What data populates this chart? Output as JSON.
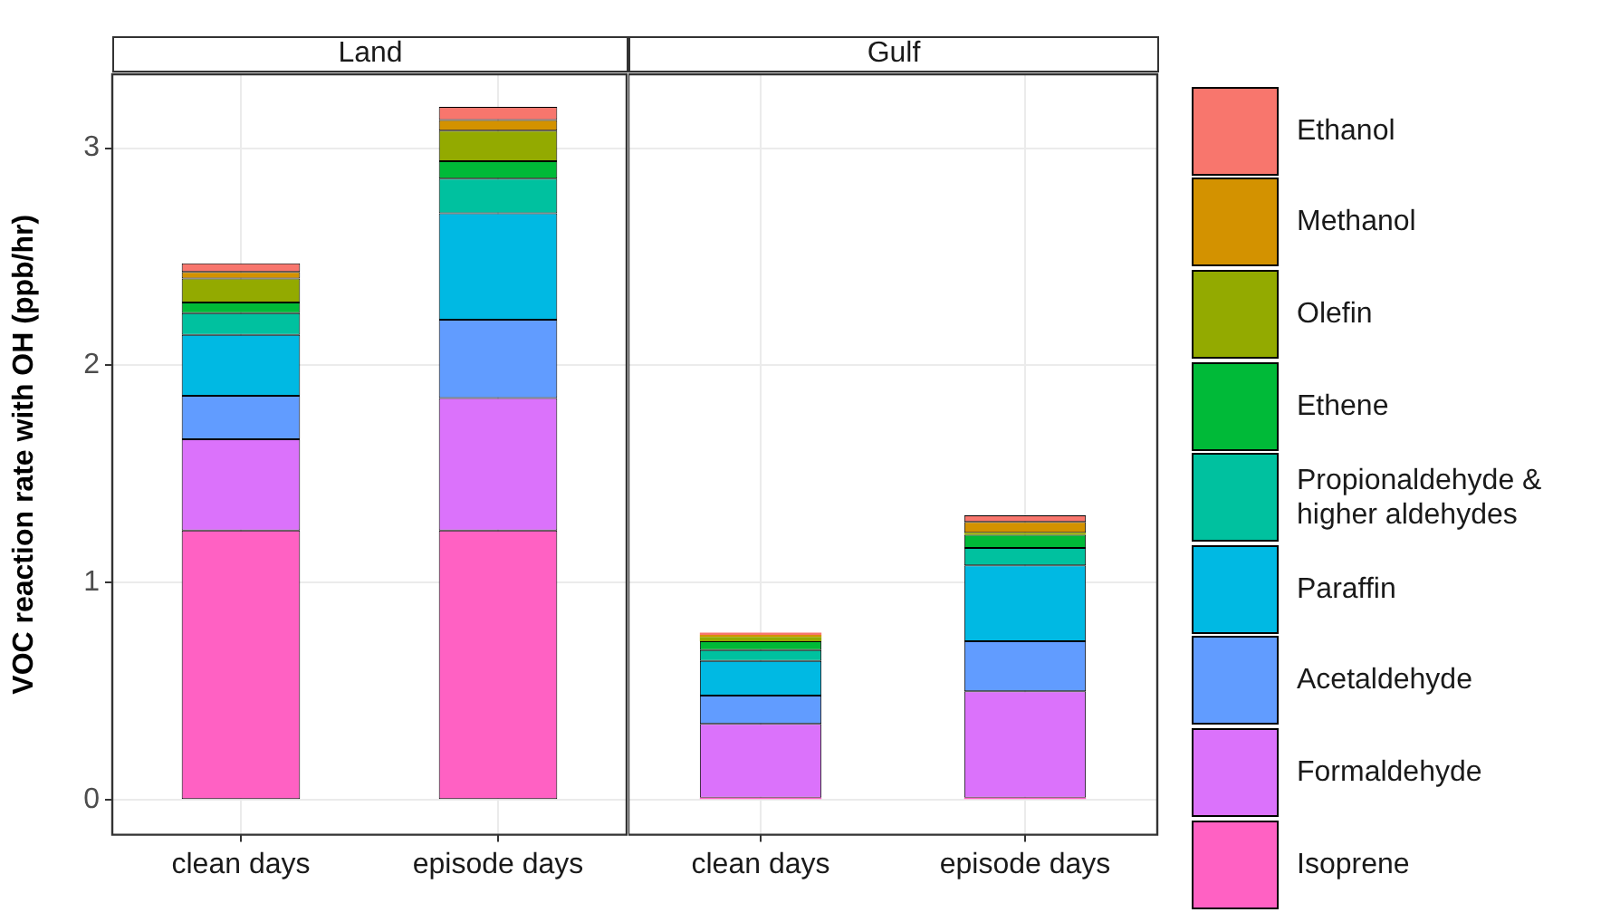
{
  "chart_data": [
    {
      "type": "bar",
      "title": "Land",
      "ylabel": "VOC reaction rate with OH (ppb/hr)",
      "categories": [
        "clean days",
        "episode days"
      ],
      "stacked": true,
      "ylim": [
        -0.16,
        3.34
      ],
      "yticks": [
        0,
        1,
        2,
        3
      ],
      "grid": true,
      "legend": false,
      "series": [
        {
          "color": "#ff61c3",
          "values": [
            1.24,
            1.24
          ]
        },
        {
          "color": "#db72fb",
          "values": [
            0.42,
            0.61
          ]
        },
        {
          "color": "#619cff",
          "values": [
            0.2,
            0.36
          ]
        },
        {
          "color": "#00b9e3",
          "values": [
            0.28,
            0.49
          ]
        },
        {
          "color": "#00c19f",
          "values": [
            0.1,
            0.16
          ]
        },
        {
          "color": "#00ba38",
          "values": [
            0.05,
            0.08
          ]
        },
        {
          "color": "#93aa00",
          "values": [
            0.11,
            0.14
          ]
        },
        {
          "color": "#d39200",
          "values": [
            0.03,
            0.05
          ]
        },
        {
          "color": "#f8766d",
          "values": [
            0.04,
            0.06
          ]
        }
      ]
    },
    {
      "type": "bar",
      "title": "Gulf",
      "categories": [
        "clean days",
        "episode days"
      ],
      "stacked": true,
      "ylim": [
        -0.16,
        3.34
      ],
      "yticks": [
        0,
        1,
        2,
        3
      ],
      "grid": true,
      "legend": "right",
      "tick_labels": "x",
      "series": [
        {
          "name": "Isoprene",
          "color": "#ff61c3",
          "values": [
            0.01,
            0.01
          ]
        },
        {
          "name": "Formaldehyde",
          "color": "#db72fb",
          "values": [
            0.34,
            0.49
          ]
        },
        {
          "name": "Acetaldehyde",
          "color": "#619cff",
          "values": [
            0.13,
            0.23
          ]
        },
        {
          "name": "Paraffin",
          "color": "#00b9e3",
          "values": [
            0.16,
            0.35
          ]
        },
        {
          "name": "Propionaldehyde & higher aldehydes",
          "color": "#00c19f",
          "values": [
            0.05,
            0.08
          ]
        },
        {
          "name": "Ethene",
          "color": "#00ba38",
          "values": [
            0.04,
            0.06
          ]
        },
        {
          "name": "Olefin",
          "color": "#93aa00",
          "values": [
            0.02,
            0.01
          ]
        },
        {
          "name": "Methanol",
          "color": "#d39200",
          "values": [
            0.01,
            0.05
          ]
        },
        {
          "name": "Ethanol",
          "color": "#f8766d",
          "values": [
            0.01,
            0.03
          ]
        }
      ]
    }
  ]
}
